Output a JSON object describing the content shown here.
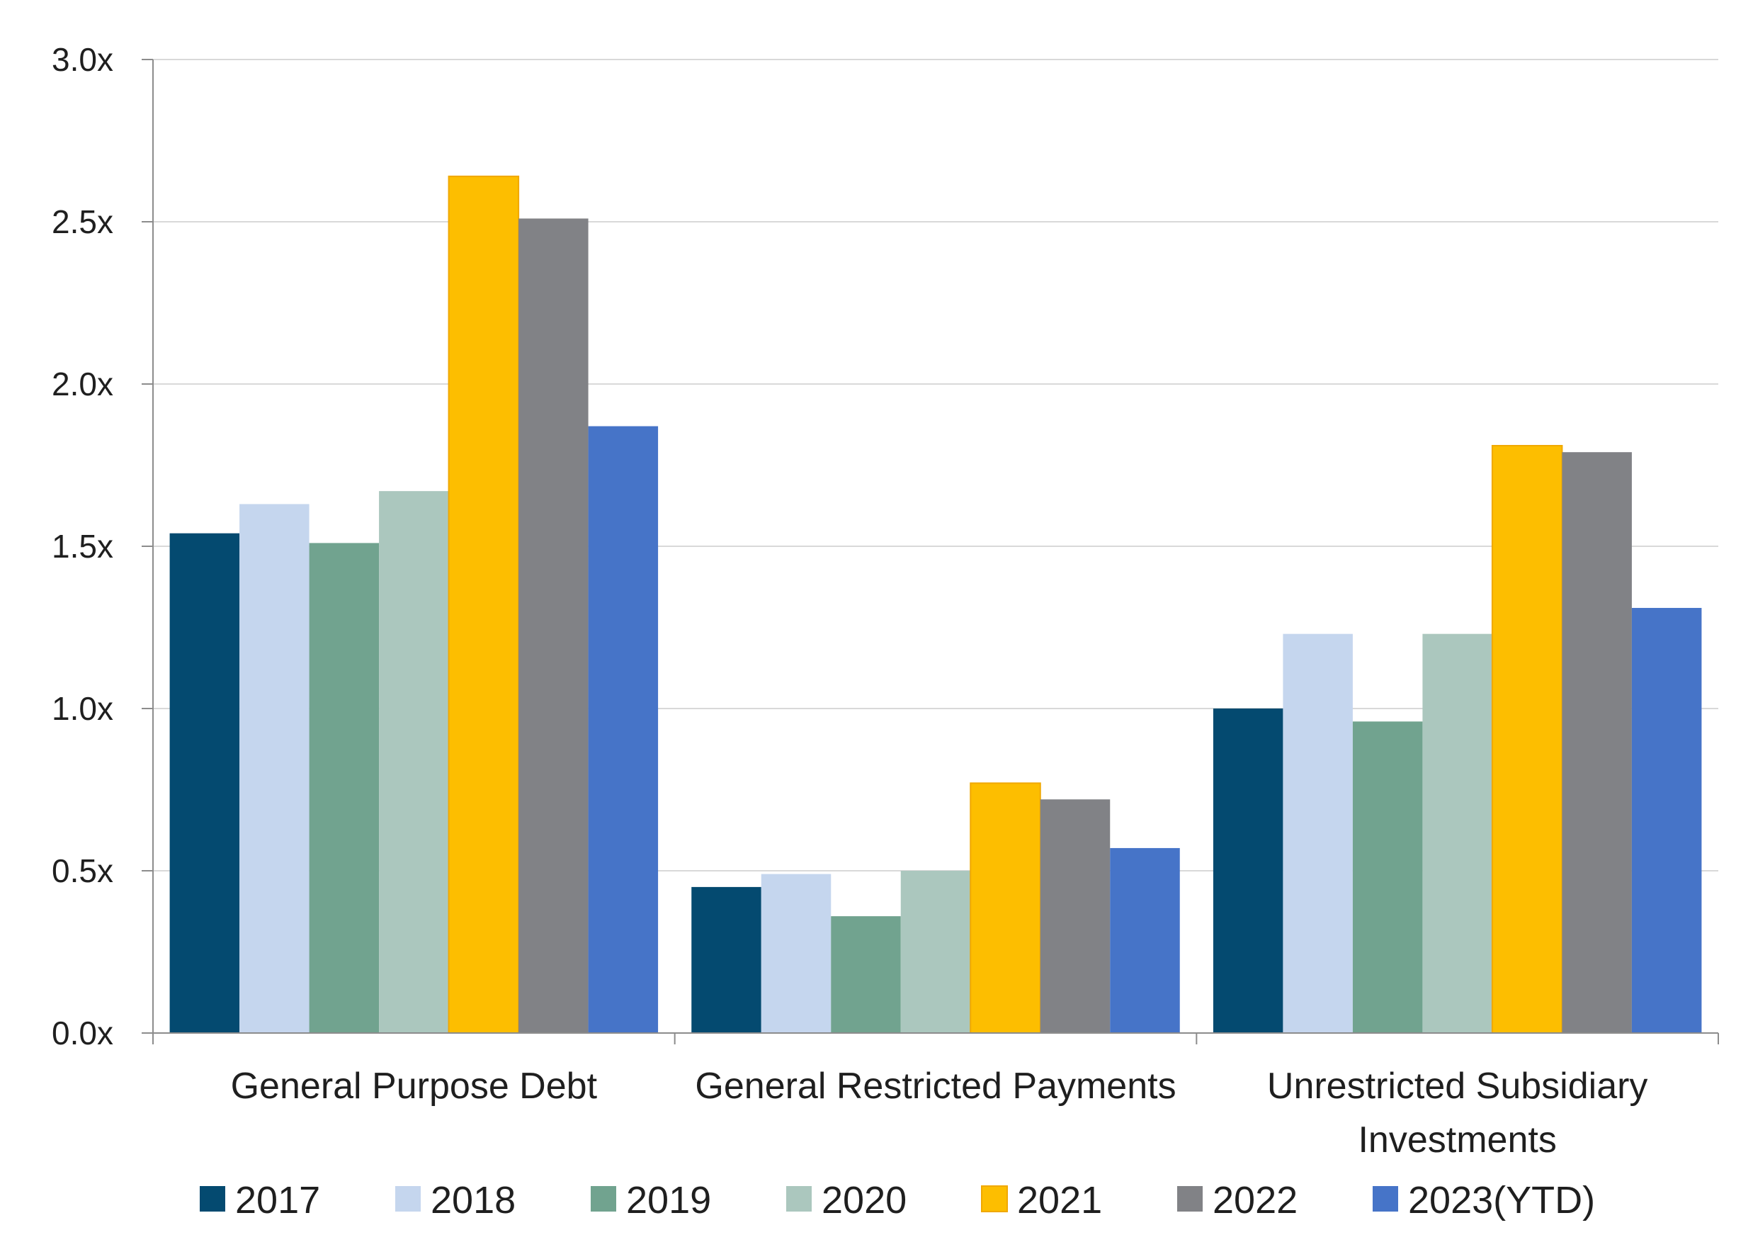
{
  "chart_data": {
    "type": "bar",
    "title": "",
    "xlabel": "",
    "ylabel": "",
    "ylim": [
      0,
      3.0
    ],
    "yticks": [
      0.0,
      0.5,
      1.0,
      1.5,
      2.0,
      2.5,
      3.0
    ],
    "ytick_labels": [
      "0.0x",
      "0.5x",
      "1.0x",
      "1.5x",
      "2.0x",
      "2.5x",
      "3.0x"
    ],
    "grid": true,
    "legend_position": "bottom",
    "categories": [
      [
        "General Purpose Debt"
      ],
      [
        "General Restricted Payments"
      ],
      [
        "Unrestricted Subsidiary",
        "Investments"
      ]
    ],
    "series": [
      {
        "name": "2017",
        "color": "#044A70",
        "values": [
          1.54,
          0.45,
          1.0
        ]
      },
      {
        "name": "2018",
        "color": "#C5D6EE",
        "values": [
          1.63,
          0.49,
          1.23
        ]
      },
      {
        "name": "2019",
        "color": "#71A38F",
        "values": [
          1.51,
          0.36,
          0.96
        ]
      },
      {
        "name": "2020",
        "color": "#ABC7BE",
        "values": [
          1.67,
          0.5,
          1.23
        ]
      },
      {
        "name": "2021",
        "color": "#FDBE00",
        "stroke": "#F0A800",
        "values": [
          2.64,
          0.77,
          1.81
        ]
      },
      {
        "name": "2022",
        "color": "#818286",
        "values": [
          2.51,
          0.72,
          1.79
        ]
      },
      {
        "name": "2023(YTD)",
        "color": "#4674C8",
        "values": [
          1.87,
          0.57,
          1.31
        ]
      }
    ]
  }
}
